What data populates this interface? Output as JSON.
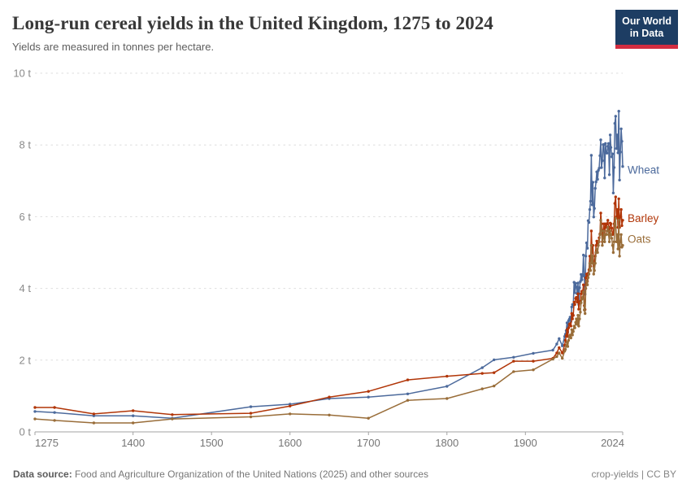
{
  "header": {
    "title": "Long-run cereal yields in the United Kingdom, 1275 to 2024",
    "subtitle": "Yields are measured in tonnes per hectare.",
    "logo": {
      "line1": "Our World",
      "line2": "in Data",
      "bg_color": "#1d3d63",
      "accent_color": "#d32d41"
    }
  },
  "footer": {
    "source_label": "Data source:",
    "source_text": " Food and Agriculture Organization of the United Nations (2025) and other sources",
    "note_right": "crop-yields | CC BY"
  },
  "chart_data": {
    "type": "line",
    "title": "Long-run cereal yields in the United Kingdom, 1275 to 2024",
    "subtitle": "Yields are measured in tonnes per hectare.",
    "unit": "tonnes per hectare",
    "xlim": [
      1275,
      2024
    ],
    "ylim": [
      0,
      10
    ],
    "yticks": [
      0,
      2,
      4,
      6,
      8,
      10
    ],
    "ytick_suffix": " t",
    "xticks": [
      1275,
      1400,
      1500,
      1600,
      1700,
      1800,
      1900,
      2024
    ],
    "grid": "horizontal-dashed",
    "legend_position": "end-of-line-labels",
    "axis_color": "#a3a3a3",
    "grid_color": "#dedede",
    "tick_label_color": "#757575",
    "ytick_label_color": "#8a8a8a",
    "x": [
      1275,
      1300,
      1350,
      1400,
      1450,
      1550,
      1600,
      1650,
      1700,
      1750,
      1800,
      1845,
      1860,
      1885,
      1910,
      1935,
      1940,
      1943,
      1947,
      1950,
      1951,
      1952,
      1953,
      1954,
      1955,
      1956,
      1957,
      1958,
      1959,
      1960,
      1961,
      1962,
      1963,
      1964,
      1965,
      1966,
      1967,
      1968,
      1969,
      1970,
      1971,
      1972,
      1973,
      1974,
      1975,
      1976,
      1977,
      1978,
      1979,
      1980,
      1981,
      1982,
      1983,
      1984,
      1985,
      1986,
      1987,
      1988,
      1989,
      1990,
      1991,
      1992,
      1993,
      1994,
      1995,
      1996,
      1997,
      1998,
      1999,
      2000,
      2001,
      2002,
      2003,
      2004,
      2005,
      2006,
      2007,
      2008,
      2009,
      2010,
      2011,
      2012,
      2013,
      2014,
      2015,
      2016,
      2017,
      2018,
      2019,
      2020,
      2021,
      2022,
      2023,
      2024
    ],
    "series": [
      {
        "name": "Wheat",
        "color": "#4C6A9C",
        "label_dy": 5,
        "values": [
          0.57,
          0.54,
          0.45,
          0.45,
          0.38,
          0.7,
          0.77,
          0.93,
          0.97,
          1.06,
          1.27,
          1.79,
          2.01,
          2.08,
          2.19,
          2.28,
          2.45,
          2.6,
          2.4,
          2.66,
          2.72,
          2.82,
          3.04,
          2.78,
          3.1,
          3.14,
          3.2,
          3.08,
          3.48,
          3.55,
          3.54,
          4.17,
          3.88,
          4.14,
          4.04,
          3.85,
          4.15,
          3.55,
          4.02,
          4.19,
          4.39,
          4.24,
          4.38,
          4.93,
          4.34,
          3.84,
          4.9,
          5.27,
          5.12,
          5.89,
          5.84,
          6.2,
          6.43,
          7.71,
          6.33,
          6.96,
          5.99,
          6.23,
          6.79,
          6.97,
          7.25,
          7.04,
          7.29,
          7.35,
          7.7,
          8.14,
          7.37,
          7.56,
          8.01,
          8.01,
          7.08,
          8.04,
          7.78,
          7.77,
          7.96,
          8.04,
          7.17,
          8.28,
          7.93,
          7.67,
          7.75,
          6.66,
          7.37,
          8.6,
          8.8,
          7.9,
          8.28,
          7.78,
          8.94,
          7.02,
          7.8,
          8.45,
          8.1,
          7.4
        ]
      },
      {
        "name": "Barley",
        "color": "#B13507",
        "label_dy": -2,
        "values": [
          0.68,
          0.68,
          0.5,
          0.59,
          0.48,
          0.52,
          0.72,
          0.97,
          1.13,
          1.45,
          1.55,
          1.63,
          1.65,
          1.97,
          1.97,
          2.05,
          2.2,
          2.35,
          2.2,
          2.42,
          2.55,
          2.68,
          2.85,
          2.66,
          2.9,
          3.0,
          3.02,
          2.95,
          3.3,
          3.15,
          3.25,
          3.62,
          3.55,
          3.72,
          3.75,
          3.62,
          3.85,
          3.42,
          3.6,
          3.64,
          3.85,
          3.92,
          3.9,
          4.1,
          3.52,
          3.41,
          4.3,
          4.4,
          4.2,
          4.42,
          4.52,
          4.9,
          4.62,
          5.6,
          5.0,
          5.2,
          4.62,
          4.72,
          4.9,
          5.2,
          5.32,
          5.2,
          5.3,
          5.41,
          5.52,
          6.1,
          5.8,
          5.3,
          5.62,
          5.8,
          5.5,
          5.8,
          5.7,
          5.8,
          5.9,
          5.7,
          5.5,
          5.82,
          5.8,
          5.68,
          5.5,
          5.52,
          5.8,
          6.37,
          6.55,
          6.0,
          6.2,
          5.7,
          6.5,
          5.7,
          6.0,
          6.2,
          5.75,
          5.9
        ]
      },
      {
        "name": "Oats",
        "color": "#996D39",
        "label_dy": -7,
        "values": [
          0.36,
          0.32,
          0.25,
          0.25,
          0.36,
          0.42,
          0.5,
          0.47,
          0.38,
          0.88,
          0.93,
          1.2,
          1.28,
          1.68,
          1.73,
          2.03,
          2.1,
          2.2,
          2.05,
          2.25,
          2.3,
          2.4,
          2.5,
          2.38,
          2.55,
          2.65,
          2.7,
          2.62,
          2.85,
          2.7,
          2.8,
          2.95,
          2.9,
          3.05,
          3.15,
          3.0,
          3.25,
          2.95,
          3.15,
          3.34,
          3.6,
          3.7,
          3.75,
          3.9,
          3.4,
          3.3,
          4.0,
          4.2,
          4.1,
          4.3,
          4.4,
          4.7,
          4.5,
          5.2,
          4.7,
          4.9,
          4.4,
          4.5,
          4.7,
          5.0,
          5.1,
          5.0,
          5.2,
          5.3,
          5.5,
          5.9,
          5.6,
          5.2,
          5.4,
          5.6,
          5.3,
          5.5,
          5.5,
          5.6,
          5.7,
          5.5,
          5.3,
          5.6,
          5.5,
          5.4,
          5.2,
          5.0,
          5.3,
          5.8,
          5.95,
          5.3,
          5.5,
          5.1,
          5.9,
          4.9,
          5.3,
          5.5,
          5.15,
          5.2
        ]
      }
    ]
  }
}
